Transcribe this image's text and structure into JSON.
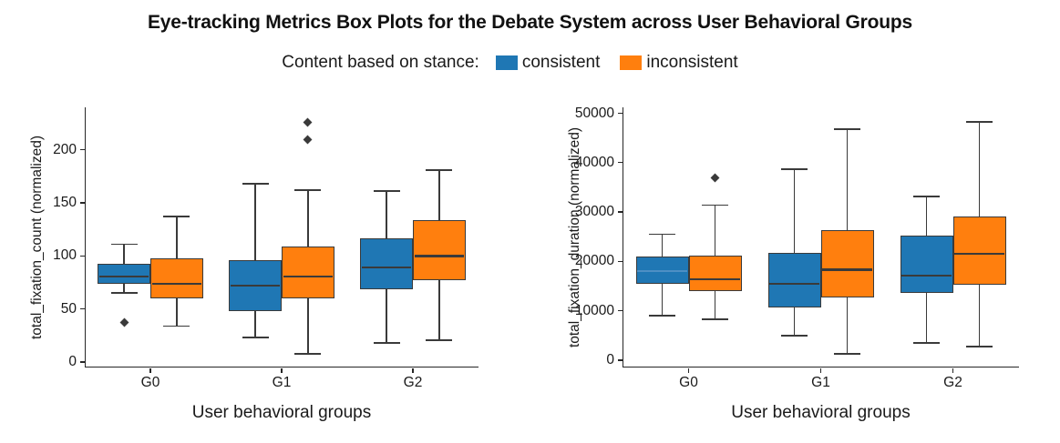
{
  "title": "Eye-tracking Metrics Box Plots for the Debate System across User Behavioral Groups",
  "legend": {
    "label": "Content based on stance:",
    "items": [
      {
        "label": "consistent",
        "color": "#1F77B4"
      },
      {
        "label": "inconsistent",
        "color": "#FF7F0E"
      }
    ]
  },
  "colors": {
    "consistent": "#1F77B4",
    "inconsistent": "#FF7F0E",
    "box_edge": "#3a3a3a",
    "spine": "#262626"
  },
  "chart_data": [
    {
      "type": "box",
      "xlabel": "User behavioral groups",
      "ylabel": "total_fixation_count (normalized)",
      "categories": [
        "G0",
        "G1",
        "G2"
      ],
      "yticks": [
        0,
        50,
        100,
        150,
        200
      ],
      "ylim": [
        -5,
        240
      ],
      "grid": false,
      "series": [
        {
          "name": "consistent",
          "color": "#1F77B4",
          "boxes": [
            {
              "whislo": 65,
              "q1": 74,
              "med": 81,
              "q3": 93,
              "whishi": 111,
              "fliers": [
                37
              ]
            },
            {
              "whislo": 23,
              "q1": 48,
              "med": 72,
              "q3": 96,
              "whishi": 168,
              "fliers": []
            },
            {
              "whislo": 18,
              "q1": 69,
              "med": 89,
              "q3": 117,
              "whishi": 161,
              "fliers": []
            }
          ]
        },
        {
          "name": "inconsistent",
          "color": "#FF7F0E",
          "boxes": [
            {
              "whislo": 34,
              "q1": 60,
              "med": 74,
              "q3": 98,
              "whishi": 137,
              "fliers": []
            },
            {
              "whislo": 8,
              "q1": 60,
              "med": 81,
              "q3": 109,
              "whishi": 162,
              "fliers": [
                210,
                226
              ]
            },
            {
              "whislo": 21,
              "q1": 77,
              "med": 100,
              "q3": 134,
              "whishi": 181,
              "fliers": []
            }
          ]
        }
      ]
    },
    {
      "type": "box",
      "xlabel": "User behavioral groups",
      "ylabel": "total_fixation_duration (normalized)",
      "categories": [
        "G0",
        "G1",
        "G2"
      ],
      "yticks": [
        0,
        10000,
        20000,
        30000,
        40000,
        50000
      ],
      "ylim": [
        -1500,
        51200
      ],
      "grid": false,
      "series": [
        {
          "name": "consistent",
          "color": "#1F77B4",
          "boxes": [
            {
              "whislo": 9000,
              "q1": 15500,
              "med": 18000,
              "q3": 21000,
              "whishi": 25500,
              "fliers": [],
              "median_color": "#4D8FC4"
            },
            {
              "whislo": 5000,
              "q1": 10600,
              "med": 15500,
              "q3": 21700,
              "whishi": 38700,
              "fliers": []
            },
            {
              "whislo": 3500,
              "q1": 13600,
              "med": 17100,
              "q3": 25200,
              "whishi": 33200,
              "fliers": []
            }
          ]
        },
        {
          "name": "inconsistent",
          "color": "#FF7F0E",
          "boxes": [
            {
              "whislo": 8300,
              "q1": 13900,
              "med": 16300,
              "q3": 21200,
              "whishi": 31400,
              "fliers": [
                37000
              ]
            },
            {
              "whislo": 1200,
              "q1": 12600,
              "med": 18300,
              "q3": 26400,
              "whishi": 46800,
              "fliers": []
            },
            {
              "whislo": 2700,
              "q1": 15300,
              "med": 21500,
              "q3": 29100,
              "whishi": 48300,
              "fliers": []
            }
          ]
        }
      ]
    }
  ]
}
